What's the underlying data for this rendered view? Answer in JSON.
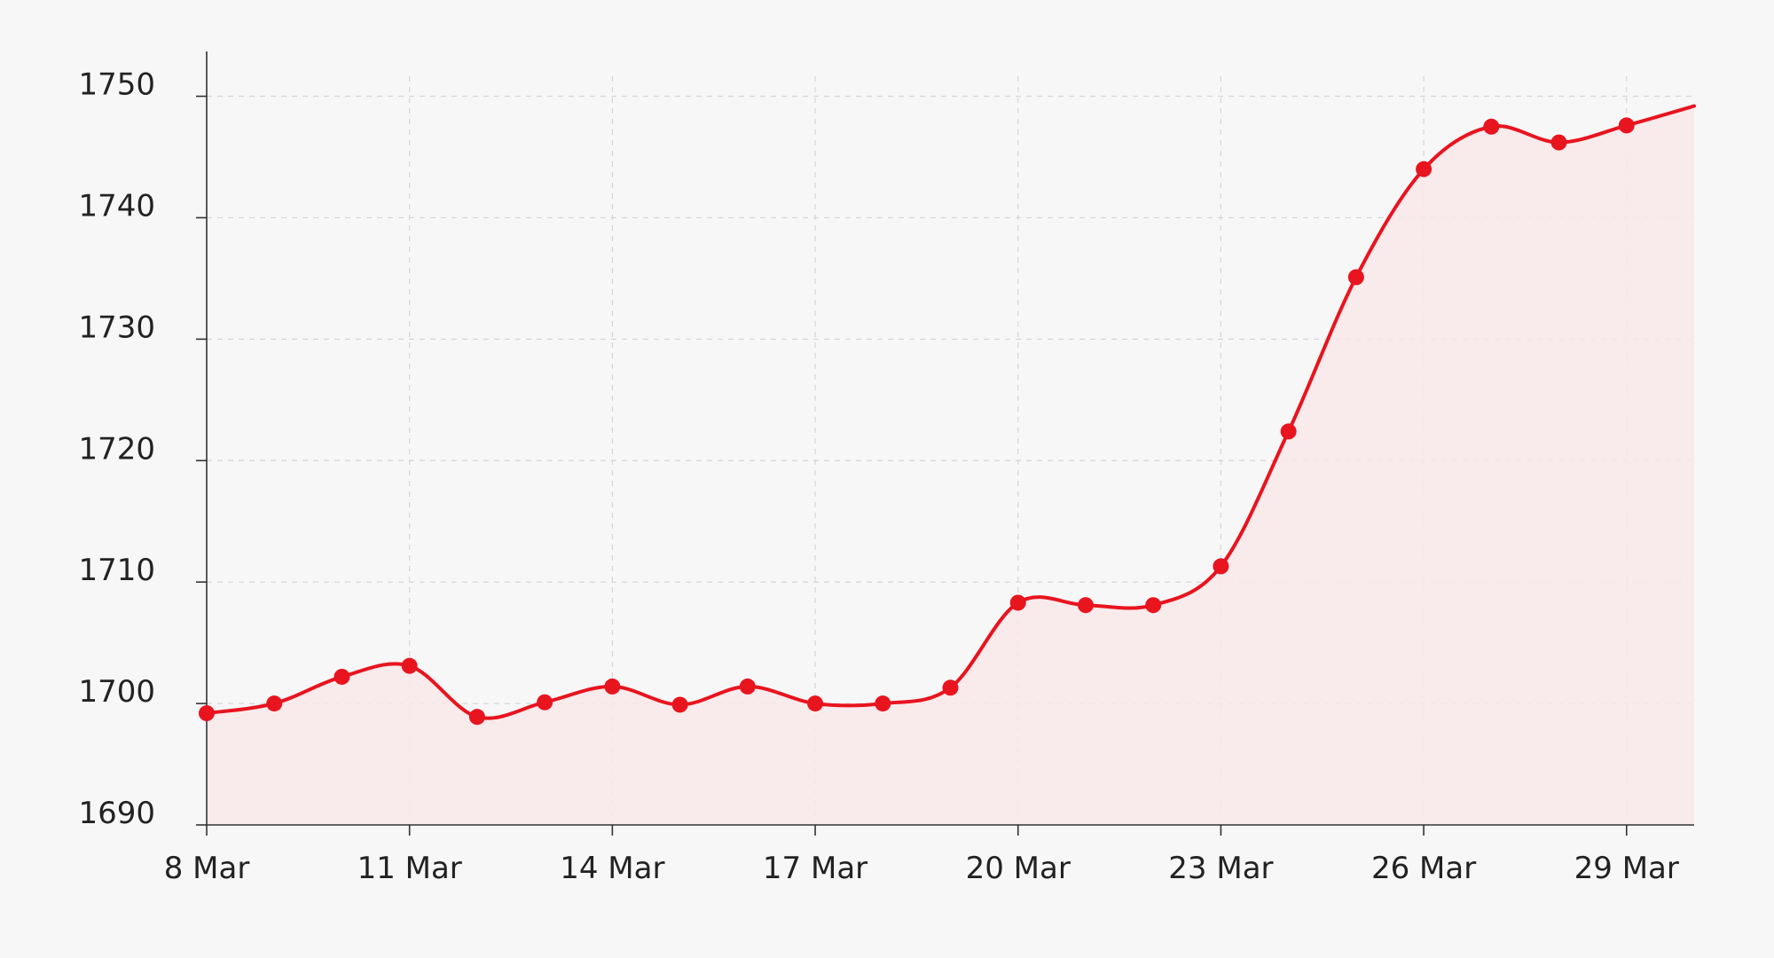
{
  "chart_data": {
    "type": "area",
    "title": "",
    "xlabel": "",
    "ylabel": "",
    "x_tick_labels": [
      "8 Mar",
      "11 Mar",
      "14 Mar",
      "17 Mar",
      "20 Mar",
      "23 Mar",
      "26 Mar",
      "29 Mar"
    ],
    "y_tick_labels": [
      "1690",
      "1700",
      "1710",
      "1720",
      "1730",
      "1740",
      "1750"
    ],
    "ylim": [
      1690,
      1751.5
    ],
    "xlim": [
      "8 Mar",
      "30 Mar"
    ],
    "grid": true,
    "legend": "none",
    "colors": {
      "line": "#e8141e",
      "fill": "#f9e8ea",
      "grid": "#d6d6d6",
      "axis": "#333333",
      "background": "#f7f7f8"
    },
    "series": [
      {
        "x": [
          "8 Mar",
          "9 Mar",
          "10 Mar",
          "11 Mar",
          "12 Mar",
          "13 Mar",
          "14 Mar",
          "15 Mar",
          "16 Mar",
          "17 Mar",
          "18 Mar",
          "19 Mar",
          "20 Mar",
          "21 Mar",
          "22 Mar",
          "23 Mar",
          "24 Mar",
          "25 Mar",
          "26 Mar",
          "27 Mar",
          "28 Mar",
          "29 Mar"
        ],
        "values": [
          1699.2,
          1700.0,
          1702.2,
          1703.1,
          1698.9,
          1700.1,
          1701.4,
          1699.9,
          1701.4,
          1700.0,
          1700.0,
          1701.3,
          1708.3,
          1708.1,
          1708.1,
          1711.3,
          1722.4,
          1735.1,
          1744.0,
          1747.5,
          1746.2,
          1747.6
        ]
      }
    ],
    "line_extends_to": {
      "x": "30 Mar",
      "value": 1749.2
    }
  }
}
